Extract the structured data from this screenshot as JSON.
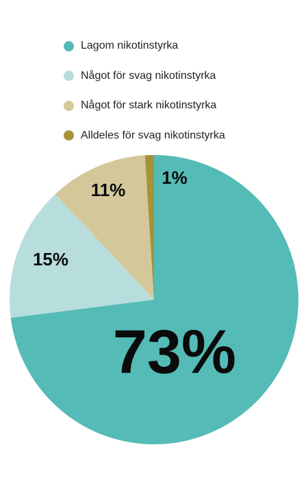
{
  "chart_data": {
    "type": "pie",
    "title": "",
    "categories": [
      "Lagom nikotinstyrka",
      "Något för svag nikotinstyrka",
      "Något för stark nikotinstyrka",
      "Alldeles för svag nikotinstyrka"
    ],
    "values": [
      73,
      15,
      11,
      1
    ],
    "value_labels": [
      "73%",
      "15%",
      "11%",
      "1%"
    ],
    "colors": [
      "#55bbb6",
      "#b7dedd",
      "#d4c89b",
      "#a5933a"
    ],
    "legend": "top-left",
    "start_angle": "12 o'clock",
    "direction": "clockwise"
  }
}
